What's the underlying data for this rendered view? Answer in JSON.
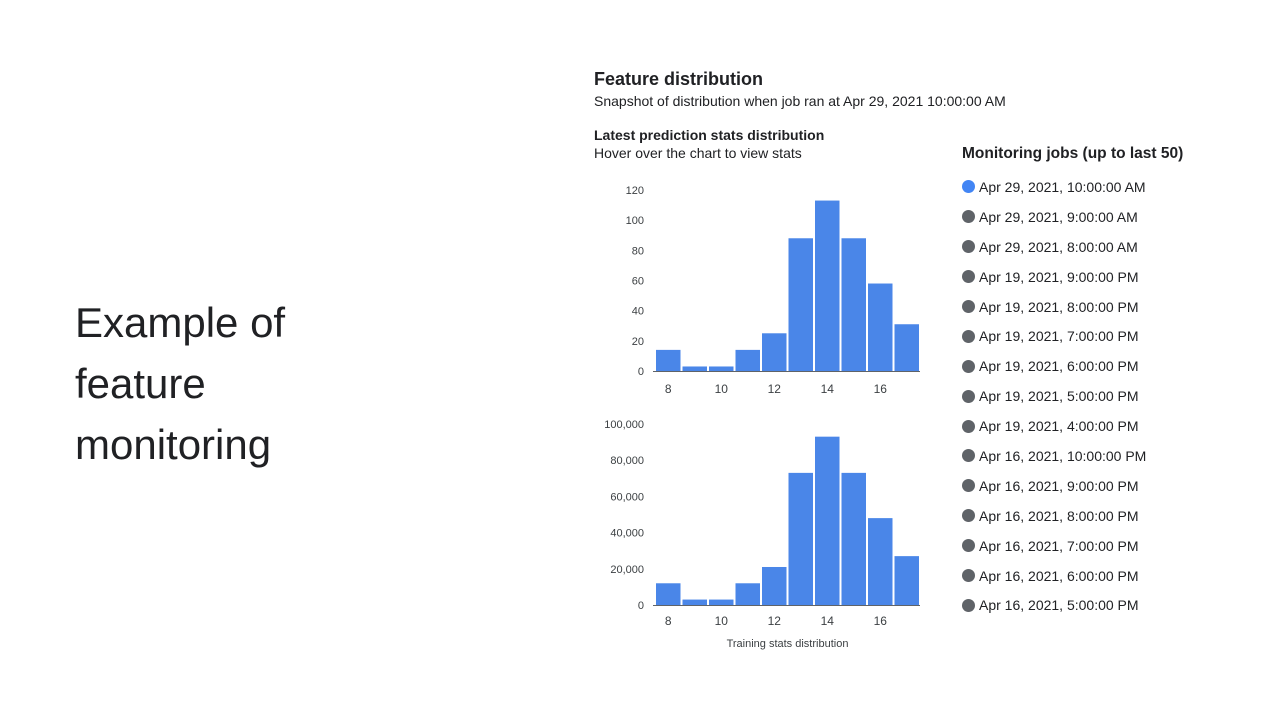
{
  "slide": {
    "title_lines": [
      "Example of",
      "feature",
      "monitoring"
    ]
  },
  "panel": {
    "title": "Feature distribution",
    "subtitle": "Snapshot of distribution when job ran at Apr 29, 2021 10:00:00 AM",
    "chart_title": "Latest prediction stats distribution",
    "chart_hint": "Hover over the chart to view stats"
  },
  "jobs": {
    "title": "Monitoring jobs (up to last 50)",
    "items": [
      {
        "label": "Apr 29, 2021, 10:00:00 AM",
        "active": true
      },
      {
        "label": "Apr 29, 2021, 9:00:00 AM",
        "active": false
      },
      {
        "label": "Apr 29, 2021, 8:00:00 AM",
        "active": false
      },
      {
        "label": "Apr 19, 2021, 9:00:00 PM",
        "active": false
      },
      {
        "label": "Apr 19, 2021, 8:00:00 PM",
        "active": false
      },
      {
        "label": "Apr 19, 2021, 7:00:00 PM",
        "active": false
      },
      {
        "label": "Apr 19, 2021, 6:00:00 PM",
        "active": false
      },
      {
        "label": "Apr 19, 2021, 5:00:00 PM",
        "active": false
      },
      {
        "label": "Apr 19, 2021, 4:00:00 PM",
        "active": false
      },
      {
        "label": "Apr 16, 2021, 10:00:00 PM",
        "active": false
      },
      {
        "label": "Apr 16, 2021, 9:00:00 PM",
        "active": false
      },
      {
        "label": "Apr 16, 2021, 8:00:00 PM",
        "active": false
      },
      {
        "label": "Apr 16, 2021, 7:00:00 PM",
        "active": false
      },
      {
        "label": "Apr 16, 2021, 6:00:00 PM",
        "active": false
      },
      {
        "label": "Apr 16, 2021, 5:00:00 PM",
        "active": false
      }
    ],
    "active_color": "#4285f4",
    "inactive_color": "#5f6368"
  },
  "chart_data": [
    {
      "type": "bar",
      "title": "Latest prediction stats distribution",
      "xlabel": "",
      "ylabel": "",
      "x_ticks": [
        "8",
        "10",
        "12",
        "14",
        "16"
      ],
      "xlim": [
        7.5,
        17.5
      ],
      "bin_width": 1,
      "bin_starts": [
        7.5,
        8.5,
        9.5,
        10.5,
        11.5,
        12.5,
        13.5,
        14.5,
        15.5,
        16.5
      ],
      "values": [
        14,
        3,
        3,
        14,
        25,
        88,
        113,
        88,
        58,
        31
      ],
      "ylim": [
        0,
        120
      ],
      "y_ticks": [
        "0",
        "20",
        "40",
        "60",
        "80",
        "100",
        "120"
      ],
      "y_tick_values": [
        0,
        20,
        40,
        60,
        80,
        100,
        120
      ],
      "bar_color": "#4a86e8",
      "grid": false
    },
    {
      "type": "bar",
      "title": "",
      "xlabel": "Training stats distribution",
      "ylabel": "",
      "x_ticks": [
        "8",
        "10",
        "12",
        "14",
        "16"
      ],
      "xlim": [
        7.5,
        17.5
      ],
      "bin_width": 1,
      "bin_starts": [
        7.5,
        8.5,
        9.5,
        10.5,
        11.5,
        12.5,
        13.5,
        14.5,
        15.5,
        16.5
      ],
      "values": [
        12000,
        3000,
        3000,
        12000,
        21000,
        73000,
        93000,
        73000,
        48000,
        27000
      ],
      "ylim": [
        0,
        100000
      ],
      "y_ticks": [
        "0",
        "20,000",
        "40,000",
        "60,000",
        "80,000",
        "100,000"
      ],
      "y_tick_values": [
        0,
        20000,
        40000,
        60000,
        80000,
        100000
      ],
      "bar_color": "#4a86e8",
      "grid": false
    }
  ]
}
